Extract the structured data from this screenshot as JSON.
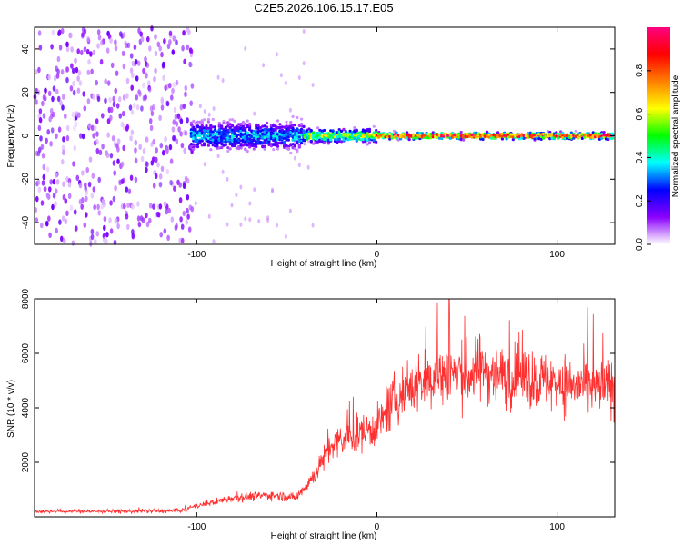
{
  "title": "C2E5.2026.106.15.17.E05",
  "chart_data": [
    {
      "type": "heatmap",
      "name": "spectrogram",
      "xlabel": "Height of straight line (km)",
      "ylabel": "Frequency (Hz)",
      "xlim": [
        -190,
        132
      ],
      "ylim": [
        -50,
        50
      ],
      "xticks": [
        -100,
        0,
        100
      ],
      "xtick_labels": [
        "-100",
        "0",
        "100"
      ],
      "yticks": [
        -40,
        -20,
        0,
        20,
        40
      ],
      "ytick_labels": [
        "-40",
        "-20",
        "0",
        "20",
        "40"
      ],
      "colorbar": {
        "label": "Normalized spectral amplitude",
        "range": [
          0,
          1
        ],
        "ticks": [
          0.0,
          0.2,
          0.4,
          0.6,
          0.8
        ],
        "tick_labels": [
          "0.0",
          "0.2",
          "0.4",
          "0.6",
          "0.8"
        ],
        "colormap": [
          "#ffffff",
          "#8b00ff",
          "#0000ff",
          "#00ffff",
          "#00ff00",
          "#ffff00",
          "#ff8000",
          "#ff0000",
          "#ff0080"
        ]
      },
      "regions": [
        {
          "x_range": [
            -190,
            -103
          ],
          "freq_spread_hz": 50,
          "amplitude": 0.12,
          "description": "broadband noise"
        },
        {
          "x_range": [
            -103,
            -40
          ],
          "freq_spread_hz": 6,
          "amplitude": 0.35
        },
        {
          "x_range": [
            -40,
            0
          ],
          "freq_spread_hz": 3,
          "amplitude": 0.6
        },
        {
          "x_range": [
            0,
            132
          ],
          "freq_spread_hz": 1.5,
          "amplitude": 0.95,
          "center_freq_hz": 0
        }
      ]
    },
    {
      "type": "line",
      "name": "snr",
      "xlabel": "Height of straight line (km)",
      "ylabel": "SNR (10 * v/v)",
      "xlim": [
        -190,
        132
      ],
      "ylim": [
        0,
        8000
      ],
      "xticks": [
        -100,
        0,
        100
      ],
      "xtick_labels": [
        "-100",
        "0",
        "100"
      ],
      "yticks": [
        2000,
        4000,
        6000,
        8000
      ],
      "ytick_labels": [
        "2000",
        "4000",
        "6000",
        "8000"
      ],
      "line_color": "#ff3030",
      "envelope": {
        "x": [
          -190,
          -150,
          -110,
          -100,
          -80,
          -60,
          -45,
          -35,
          -25,
          -15,
          -5,
          0,
          10,
          20,
          30,
          40,
          50,
          60,
          70,
          80,
          90,
          100,
          110,
          120,
          132
        ],
        "y": [
          200,
          200,
          220,
          400,
          700,
          800,
          700,
          1500,
          2600,
          2900,
          3200,
          3300,
          4300,
          4800,
          5100,
          5300,
          5200,
          5400,
          5100,
          5200,
          5000,
          4900,
          4800,
          4700,
          4800
        ]
      },
      "peak": {
        "x": 40,
        "y": 8000
      }
    }
  ]
}
